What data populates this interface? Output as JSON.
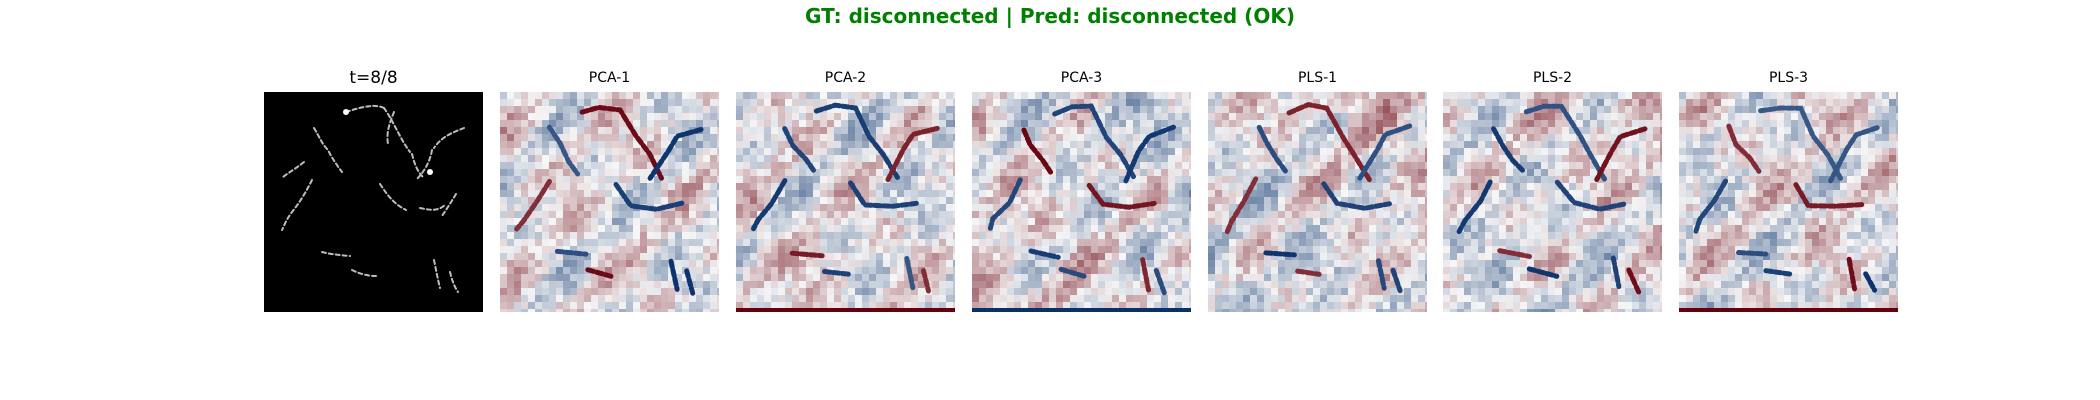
{
  "figure": {
    "suptitle": "GT: disconnected | Pred: disconnected (OK)",
    "suptitle_color": "#008000"
  },
  "panels": [
    {
      "title": "t=8/8",
      "kind": "input"
    },
    {
      "title": "PCA-1",
      "kind": "saliency"
    },
    {
      "title": "PCA-2",
      "kind": "saliency"
    },
    {
      "title": "PCA-3",
      "kind": "saliency"
    },
    {
      "title": "PLS-1",
      "kind": "saliency"
    },
    {
      "title": "PLS-2",
      "kind": "saliency"
    },
    {
      "title": "PLS-3",
      "kind": "saliency"
    }
  ],
  "colormap": {
    "negative": "#08306b",
    "neutral": "#f7f7f7",
    "positive": "#67000d"
  }
}
